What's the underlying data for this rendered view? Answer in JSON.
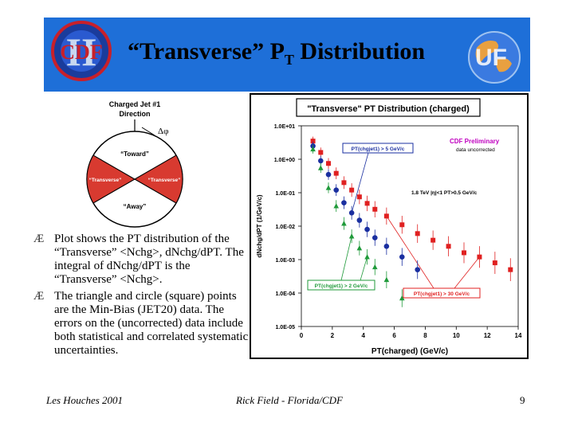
{
  "slide": {
    "title_main": "“Transverse” P",
    "title_sub": "T",
    "title_end": " Distribution",
    "footer_left": "Les Houches 2001",
    "footer_center": "Rick Field - Florida/CDF",
    "page_number": "9"
  },
  "logos": {
    "left_text": "CDF",
    "left_roman": "II"
  },
  "cone": {
    "title_line1": "Charged Jet #1",
    "title_line2": "Direction",
    "dphi": "Δφ",
    "toward": "“Toward”",
    "transverse_left": "“Transverse”",
    "transverse_right": "“Transverse”",
    "away": "“Away”"
  },
  "bullets": [
    {
      "symbol": "Æ",
      "text": "Plot shows the PT distribution of the “Transverse” <Nchg>, dNchg/dPT. The integral of dNchg/dPT is the “Transverse” <Nchg>."
    },
    {
      "symbol": "Æ",
      "text": "The triangle and circle (square) points are the Min-Bias (JET20) data. The errors on the (uncorrected) data include both statistical and correlated systematic uncertainties."
    }
  ],
  "colors": {
    "banner": "#1e6fd8",
    "square": "#e02020",
    "circle": "#1a2fa0",
    "triangle": "#1f9a3a",
    "cone_red": "#d83a30"
  },
  "chart_data": {
    "type": "scatter",
    "title": "\"Transverse\" PT Distribution (charged)",
    "xlabel": "PT(charged)  (GeV/c)",
    "ylabel": "dNchg/dPT (1/GeV/c)",
    "xlim": [
      0,
      14
    ],
    "ylim": [
      1e-05,
      10
    ],
    "log_y": true,
    "x_ticks": [
      "0",
      "2",
      "4",
      "6",
      "8",
      "10",
      "12",
      "14"
    ],
    "y_ticks": [
      "1.0E-05",
      "1.0E-04",
      "1.0E-03",
      "1.0E-02",
      "1.0E-01",
      "1.0E+00",
      "1.0E+01"
    ],
    "annotations": {
      "preliminary": "CDF Preliminary",
      "uncorrected": "data uncorrected",
      "cuts": "1.8 TeV |η|<1 PT>0.5 GeV/c",
      "label_circle": "PT(chgjet1) > 5 GeV/c",
      "label_triangle": "PT(chgjet1) > 2 GeV/c",
      "label_square": "PT(chgjet1) > 30 GeV/c"
    },
    "series": [
      {
        "name": "PT(chgjet1) > 30 GeV/c",
        "marker": "square",
        "color": "#e02020",
        "x": [
          0.75,
          1.25,
          1.75,
          2.25,
          2.75,
          3.25,
          3.75,
          4.25,
          4.75,
          5.5,
          6.5,
          7.5,
          8.5,
          9.5,
          10.5,
          11.5,
          12.5,
          13.5
        ],
        "y": [
          3.5,
          1.6,
          0.75,
          0.38,
          0.2,
          0.12,
          0.075,
          0.048,
          0.032,
          0.02,
          0.011,
          0.006,
          0.0038,
          0.0025,
          0.0016,
          0.0012,
          0.0008,
          0.0005
        ]
      },
      {
        "name": "PT(chgjet1) > 5 GeV/c",
        "marker": "circle",
        "color": "#1a2fa0",
        "x": [
          0.75,
          1.25,
          1.75,
          2.25,
          2.75,
          3.25,
          3.75,
          4.25,
          4.75,
          5.5,
          6.5,
          7.5
        ],
        "y": [
          2.5,
          0.9,
          0.35,
          0.12,
          0.05,
          0.025,
          0.015,
          0.008,
          0.0045,
          0.0025,
          0.0012,
          0.0005
        ]
      },
      {
        "name": "PT(chgjet1) > 2 GeV/c",
        "marker": "triangle",
        "color": "#1f9a3a",
        "x": [
          0.75,
          1.25,
          1.75,
          2.25,
          2.75,
          3.25,
          3.75,
          4.25,
          4.75,
          5.5,
          6.5
        ],
        "y": [
          2.0,
          0.55,
          0.14,
          0.04,
          0.012,
          0.005,
          0.0022,
          0.0012,
          0.0006,
          0.00025,
          7e-05
        ]
      }
    ]
  }
}
